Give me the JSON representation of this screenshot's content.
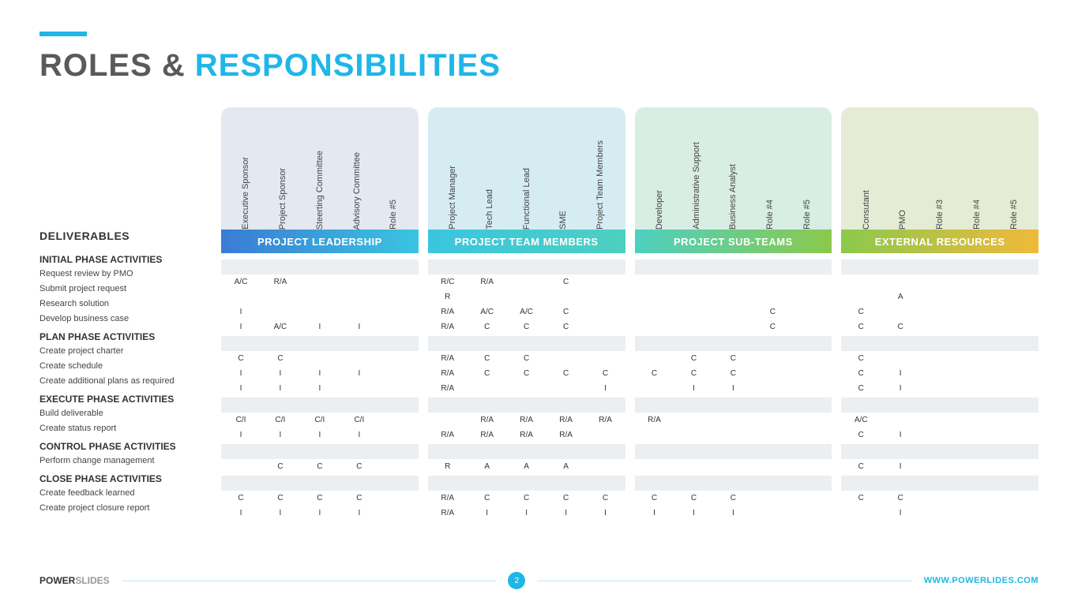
{
  "title": {
    "part1": "ROLES &",
    "part2": "RESPONSIBILITIES"
  },
  "deliverables_label": "DELIVERABLES",
  "groups": [
    {
      "title": "PROJECT  LEADERSHIP",
      "roles": [
        "Executive Sponsor",
        "Project Sponsor",
        "Steerting Committee",
        "Advisory Committee",
        "Role #5"
      ]
    },
    {
      "title": "PROJECT TEAM MEMBERS",
      "roles": [
        "Project Manager",
        "Tech Lead",
        "Functional Lead",
        "SME",
        "Project Team Members"
      ]
    },
    {
      "title": "PROJECT SUB-TEAMS",
      "roles": [
        "Developer",
        "Administrative Support",
        "Business Analyst",
        "Role #4",
        "Role #5"
      ]
    },
    {
      "title": "EXTERNAL RESOURCES",
      "roles": [
        "Consutant",
        "PMO",
        "Role #3",
        "Role #4",
        "Role #5"
      ]
    }
  ],
  "rows": [
    {
      "type": "header",
      "label": "INITIAL PHASE ACTIVITIES"
    },
    {
      "type": "data",
      "label": "Request review by PMO",
      "cells": [
        [
          "A/C",
          "R/A",
          "",
          "",
          ""
        ],
        [
          "R/C",
          "R/A",
          "",
          "C",
          ""
        ],
        [
          "",
          "",
          "",
          "",
          ""
        ],
        [
          "",
          "",
          "",
          "",
          ""
        ]
      ]
    },
    {
      "type": "data",
      "label": "Submit project request",
      "cells": [
        [
          "",
          "",
          "",
          "",
          ""
        ],
        [
          "R",
          "",
          "",
          "",
          ""
        ],
        [
          "",
          "",
          "",
          "",
          ""
        ],
        [
          "",
          "A",
          "",
          "",
          ""
        ]
      ]
    },
    {
      "type": "data",
      "label": "Research solution",
      "cells": [
        [
          "I",
          "",
          "",
          "",
          ""
        ],
        [
          "R/A",
          "A/C",
          "A/C",
          "C",
          ""
        ],
        [
          "",
          "",
          "",
          "C",
          ""
        ],
        [
          "C",
          "",
          "",
          "",
          ""
        ]
      ]
    },
    {
      "type": "data",
      "label": "Develop business case",
      "cells": [
        [
          "I",
          "A/C",
          "I",
          "I",
          ""
        ],
        [
          "R/A",
          "C",
          "C",
          "C",
          ""
        ],
        [
          "",
          "",
          "",
          "C",
          ""
        ],
        [
          "C",
          "C",
          "",
          "",
          ""
        ]
      ]
    },
    {
      "type": "header",
      "label": "PLAN PHASE ACTIVITIES"
    },
    {
      "type": "data",
      "label": "Create project charter",
      "cells": [
        [
          "C",
          "C",
          "",
          "",
          ""
        ],
        [
          "R/A",
          "C",
          "C",
          "",
          ""
        ],
        [
          "",
          "C",
          "C",
          "",
          ""
        ],
        [
          "C",
          "",
          "",
          "",
          ""
        ]
      ]
    },
    {
      "type": "data",
      "label": "Create schedule",
      "cells": [
        [
          "I",
          "I",
          "I",
          "I",
          ""
        ],
        [
          "R/A",
          "C",
          "C",
          "C",
          "C"
        ],
        [
          "C",
          "C",
          "C",
          "",
          ""
        ],
        [
          "C",
          "I",
          "",
          "",
          ""
        ]
      ]
    },
    {
      "type": "data",
      "label": "Create additional plans as required",
      "cells": [
        [
          "I",
          "I",
          "I",
          "",
          ""
        ],
        [
          "R/A",
          "",
          "",
          "",
          "I"
        ],
        [
          "",
          "I",
          "I",
          "",
          ""
        ],
        [
          "C",
          "I",
          "",
          "",
          ""
        ]
      ]
    },
    {
      "type": "header",
      "label": "EXECUTE PHASE ACTIVITIES"
    },
    {
      "type": "data",
      "label": "Build deliverable",
      "cells": [
        [
          "C/I",
          "C/I",
          "C/I",
          "C/I",
          ""
        ],
        [
          "",
          "R/A",
          "R/A",
          "R/A",
          "R/A"
        ],
        [
          "R/A",
          "",
          "",
          "",
          ""
        ],
        [
          "A/C",
          "",
          "",
          "",
          ""
        ]
      ]
    },
    {
      "type": "data",
      "label": "Create status report",
      "cells": [
        [
          "I",
          "I",
          "I",
          "I",
          ""
        ],
        [
          "R/A",
          "R/A",
          "R/A",
          "R/A",
          ""
        ],
        [
          "",
          "",
          "",
          "",
          ""
        ],
        [
          "C",
          "I",
          "",
          "",
          ""
        ]
      ]
    },
    {
      "type": "header",
      "label": "CONTROL PHASE ACTIVITIES"
    },
    {
      "type": "data",
      "label": "Perform change management",
      "cells": [
        [
          "",
          "C",
          "C",
          "C",
          ""
        ],
        [
          "R",
          "A",
          "A",
          "A",
          ""
        ],
        [
          "",
          "",
          "",
          "",
          ""
        ],
        [
          "C",
          "I",
          "",
          "",
          ""
        ]
      ]
    },
    {
      "type": "header",
      "label": "CLOSE PHASE ACTIVITIES"
    },
    {
      "type": "data",
      "label": "Create feedback learned",
      "cells": [
        [
          "C",
          "C",
          "C",
          "C",
          ""
        ],
        [
          "R/A",
          "C",
          "C",
          "C",
          "C"
        ],
        [
          "C",
          "C",
          "C",
          "",
          ""
        ],
        [
          "C",
          "C",
          "",
          "",
          ""
        ]
      ]
    },
    {
      "type": "data",
      "label": "Create project closure report",
      "cells": [
        [
          "I",
          "I",
          "I",
          "I",
          ""
        ],
        [
          "R/A",
          "I",
          "I",
          "I",
          "I"
        ],
        [
          "I",
          "I",
          "I",
          "",
          ""
        ],
        [
          "",
          "I",
          "",
          "",
          ""
        ]
      ]
    }
  ],
  "footer": {
    "brand1": "POWER",
    "brand2": "SLIDES",
    "page": "2",
    "url": "WWW.POWERLIDES.COM"
  },
  "colors": {
    "accent": "#1fb6e8"
  }
}
